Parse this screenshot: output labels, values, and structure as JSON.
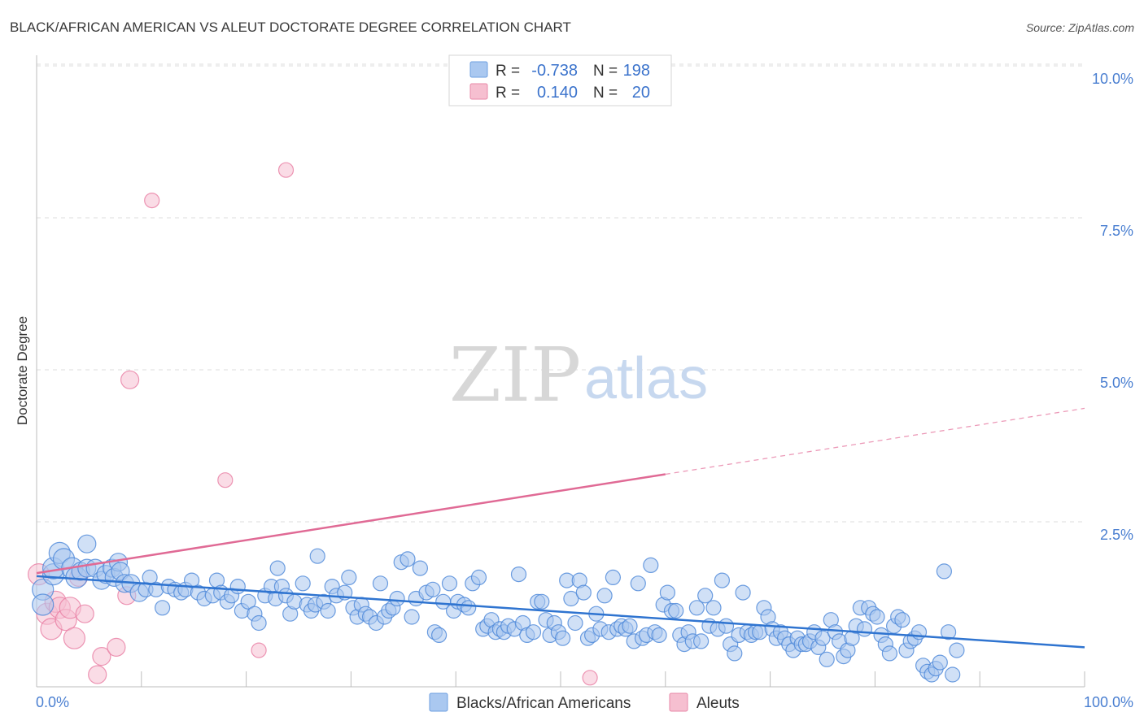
{
  "title": "BLACK/AFRICAN AMERICAN VS ALEUT DOCTORATE DEGREE CORRELATION CHART",
  "source": "Source: ZipAtlas.com",
  "watermark": {
    "zip": "ZIP",
    "atlas": "atlas"
  },
  "legend": {
    "r_label": "R =",
    "n_label": "N =",
    "rows": [
      {
        "r": "-0.738",
        "n": "198",
        "color": "#aac8f0"
      },
      {
        "r": "0.140",
        "n": "20",
        "color": "#f6bfd0"
      }
    ]
  },
  "bottom_legend": [
    "Blacks/African Americans",
    "Aleuts"
  ],
  "chart_data": {
    "type": "scatter",
    "title": "BLACK/AFRICAN AMERICAN VS ALEUT DOCTORATE DEGREE CORRELATION CHART",
    "xlabel": "",
    "ylabel": "Doctorate Degree",
    "xlim": [
      0,
      100
    ],
    "ylim": [
      0,
      10.0
    ],
    "x_tick_labels": [
      "0.0%",
      "100.0%"
    ],
    "y_ticks": [
      {
        "value": 2.5,
        "label": "2.5%"
      },
      {
        "value": 5.0,
        "label": "5.0%"
      },
      {
        "value": 7.5,
        "label": "7.5%"
      },
      {
        "value": 10.0,
        "label": "10.0%"
      }
    ],
    "series": [
      {
        "name": "Blacks/African Americans",
        "color": "#4a86d8",
        "fill": "#a9c7ef",
        "trend": {
          "x0": 0,
          "y0": 1.82,
          "x1": 100,
          "y1": 0.65
        },
        "points": [
          [
            0.6,
            1.6
          ],
          [
            0.6,
            1.35
          ],
          [
            1.6,
            1.85
          ],
          [
            1.6,
            1.95
          ],
          [
            2.2,
            2.2
          ],
          [
            2.6,
            2.1
          ],
          [
            3.4,
            1.95
          ],
          [
            3.8,
            1.8
          ],
          [
            4.2,
            1.9
          ],
          [
            4.8,
            1.95
          ],
          [
            4.8,
            2.35
          ],
          [
            5.6,
            1.95
          ],
          [
            6.2,
            1.75
          ],
          [
            6.6,
            1.85
          ],
          [
            7.2,
            1.95
          ],
          [
            7.4,
            1.8
          ],
          [
            7.8,
            2.05
          ],
          [
            8.0,
            1.9
          ],
          [
            8.4,
            1.7
          ],
          [
            9.0,
            1.7
          ],
          [
            9.8,
            1.55
          ],
          [
            10.4,
            1.6
          ],
          [
            10.8,
            1.8
          ],
          [
            11.4,
            1.6
          ],
          [
            12.0,
            1.3
          ],
          [
            12.6,
            1.65
          ],
          [
            13.2,
            1.6
          ],
          [
            13.8,
            1.55
          ],
          [
            14.2,
            1.6
          ],
          [
            14.8,
            1.75
          ],
          [
            15.4,
            1.55
          ],
          [
            16.0,
            1.45
          ],
          [
            16.8,
            1.5
          ],
          [
            17.2,
            1.75
          ],
          [
            17.6,
            1.55
          ],
          [
            18.2,
            1.4
          ],
          [
            18.6,
            1.5
          ],
          [
            19.2,
            1.65
          ],
          [
            19.6,
            1.25
          ],
          [
            20.2,
            1.4
          ],
          [
            20.8,
            1.2
          ],
          [
            21.2,
            1.05
          ],
          [
            21.8,
            1.5
          ],
          [
            22.4,
            1.65
          ],
          [
            22.8,
            1.45
          ],
          [
            23.0,
            1.95
          ],
          [
            23.4,
            1.65
          ],
          [
            23.8,
            1.5
          ],
          [
            24.2,
            1.2
          ],
          [
            24.6,
            1.4
          ],
          [
            25.4,
            1.7
          ],
          [
            25.8,
            1.35
          ],
          [
            26.2,
            1.25
          ],
          [
            26.6,
            1.35
          ],
          [
            26.8,
            2.15
          ],
          [
            27.4,
            1.4
          ],
          [
            27.8,
            1.25
          ],
          [
            28.2,
            1.65
          ],
          [
            28.6,
            1.5
          ],
          [
            29.4,
            1.55
          ],
          [
            29.8,
            1.8
          ],
          [
            30.2,
            1.3
          ],
          [
            30.6,
            1.15
          ],
          [
            31.0,
            1.35
          ],
          [
            31.4,
            1.2
          ],
          [
            31.8,
            1.15
          ],
          [
            32.4,
            1.05
          ],
          [
            32.8,
            1.7
          ],
          [
            33.2,
            1.15
          ],
          [
            33.6,
            1.25
          ],
          [
            34.0,
            1.3
          ],
          [
            34.4,
            1.45
          ],
          [
            34.8,
            2.05
          ],
          [
            35.4,
            2.1
          ],
          [
            35.8,
            1.15
          ],
          [
            36.2,
            1.45
          ],
          [
            36.6,
            1.95
          ],
          [
            37.2,
            1.55
          ],
          [
            37.8,
            1.6
          ],
          [
            38.0,
            0.9
          ],
          [
            38.4,
            0.85
          ],
          [
            38.8,
            1.4
          ],
          [
            39.4,
            1.7
          ],
          [
            39.8,
            1.25
          ],
          [
            40.2,
            1.4
          ],
          [
            40.8,
            1.35
          ],
          [
            41.2,
            1.3
          ],
          [
            41.6,
            1.7
          ],
          [
            42.2,
            1.8
          ],
          [
            42.6,
            0.95
          ],
          [
            43.0,
            1.0
          ],
          [
            43.4,
            1.1
          ],
          [
            43.8,
            0.9
          ],
          [
            44.2,
            0.95
          ],
          [
            44.6,
            0.9
          ],
          [
            45.0,
            1.0
          ],
          [
            45.6,
            0.95
          ],
          [
            46.0,
            1.85
          ],
          [
            46.4,
            1.05
          ],
          [
            46.8,
            0.85
          ],
          [
            47.4,
            0.9
          ],
          [
            47.8,
            1.4
          ],
          [
            48.2,
            1.4
          ],
          [
            48.6,
            1.1
          ],
          [
            49.0,
            0.85
          ],
          [
            49.4,
            1.05
          ],
          [
            49.8,
            0.9
          ],
          [
            50.2,
            0.8
          ],
          [
            50.6,
            1.75
          ],
          [
            51.0,
            1.45
          ],
          [
            51.4,
            1.05
          ],
          [
            51.8,
            1.75
          ],
          [
            52.2,
            1.55
          ],
          [
            52.6,
            0.8
          ],
          [
            53.0,
            0.85
          ],
          [
            53.4,
            1.2
          ],
          [
            53.8,
            0.95
          ],
          [
            54.2,
            1.5
          ],
          [
            54.6,
            0.9
          ],
          [
            55.0,
            1.8
          ],
          [
            55.4,
            0.95
          ],
          [
            55.8,
            1.0
          ],
          [
            56.2,
            0.95
          ],
          [
            56.6,
            1.0
          ],
          [
            57.0,
            0.75
          ],
          [
            57.4,
            1.7
          ],
          [
            57.8,
            0.8
          ],
          [
            58.2,
            0.85
          ],
          [
            58.6,
            2.0
          ],
          [
            59.0,
            0.9
          ],
          [
            59.4,
            0.85
          ],
          [
            59.8,
            1.35
          ],
          [
            60.2,
            1.55
          ],
          [
            60.6,
            1.25
          ],
          [
            61.0,
            1.25
          ],
          [
            61.4,
            0.85
          ],
          [
            61.8,
            0.7
          ],
          [
            62.2,
            0.9
          ],
          [
            62.6,
            0.75
          ],
          [
            63.0,
            1.3
          ],
          [
            63.4,
            0.75
          ],
          [
            63.8,
            1.5
          ],
          [
            64.2,
            1.0
          ],
          [
            64.6,
            1.3
          ],
          [
            65.0,
            0.95
          ],
          [
            65.4,
            1.75
          ],
          [
            65.8,
            1.0
          ],
          [
            66.2,
            0.7
          ],
          [
            66.6,
            0.55
          ],
          [
            67.0,
            0.85
          ],
          [
            67.4,
            1.55
          ],
          [
            67.8,
            0.9
          ],
          [
            68.2,
            0.85
          ],
          [
            68.6,
            0.9
          ],
          [
            69.0,
            0.9
          ],
          [
            69.4,
            1.3
          ],
          [
            69.8,
            1.15
          ],
          [
            70.2,
            0.95
          ],
          [
            70.6,
            0.8
          ],
          [
            71.0,
            0.9
          ],
          [
            71.4,
            0.8
          ],
          [
            71.8,
            0.7
          ],
          [
            72.2,
            0.6
          ],
          [
            72.6,
            0.8
          ],
          [
            73.0,
            0.7
          ],
          [
            73.4,
            0.7
          ],
          [
            73.8,
            0.75
          ],
          [
            74.2,
            0.9
          ],
          [
            74.6,
            0.65
          ],
          [
            75.0,
            0.8
          ],
          [
            75.4,
            0.45
          ],
          [
            75.8,
            1.1
          ],
          [
            76.2,
            0.9
          ],
          [
            76.6,
            0.75
          ],
          [
            77.0,
            0.5
          ],
          [
            77.4,
            0.6
          ],
          [
            77.8,
            0.8
          ],
          [
            78.2,
            1.0
          ],
          [
            78.6,
            1.3
          ],
          [
            79.0,
            0.95
          ],
          [
            79.4,
            1.3
          ],
          [
            79.8,
            1.2
          ],
          [
            80.2,
            1.15
          ],
          [
            80.6,
            0.85
          ],
          [
            81.0,
            0.7
          ],
          [
            81.4,
            0.55
          ],
          [
            81.8,
            1.0
          ],
          [
            82.2,
            1.15
          ],
          [
            82.6,
            1.1
          ],
          [
            83.0,
            0.6
          ],
          [
            83.4,
            0.75
          ],
          [
            83.8,
            0.8
          ],
          [
            84.2,
            0.9
          ],
          [
            84.6,
            0.35
          ],
          [
            85.0,
            0.25
          ],
          [
            85.4,
            0.2
          ],
          [
            85.8,
            0.3
          ],
          [
            86.2,
            0.4
          ],
          [
            86.6,
            1.9
          ],
          [
            87.0,
            0.9
          ],
          [
            87.4,
            0.2
          ],
          [
            87.8,
            0.6
          ]
        ]
      },
      {
        "name": "Aleuts",
        "color": "#e87da3",
        "fill": "#f6c0d1",
        "trend": {
          "x0": 0,
          "y0": 1.87,
          "x1": 100,
          "y1": 4.58,
          "solid_until_x": 60
        },
        "points": [
          [
            0.2,
            1.85
          ],
          [
            1.0,
            1.2
          ],
          [
            1.4,
            0.95
          ],
          [
            1.8,
            1.4
          ],
          [
            2.2,
            1.3
          ],
          [
            2.8,
            1.1
          ],
          [
            3.2,
            1.3
          ],
          [
            3.6,
            0.8
          ],
          [
            4.0,
            1.8
          ],
          [
            4.6,
            1.2
          ],
          [
            5.8,
            0.2
          ],
          [
            6.2,
            0.5
          ],
          [
            7.6,
            0.65
          ],
          [
            8.6,
            1.5
          ],
          [
            8.9,
            5.05
          ],
          [
            11.0,
            8.0
          ],
          [
            18.0,
            3.4
          ],
          [
            21.2,
            0.6
          ],
          [
            23.8,
            8.5
          ],
          [
            52.8,
            0.15
          ]
        ]
      }
    ]
  }
}
